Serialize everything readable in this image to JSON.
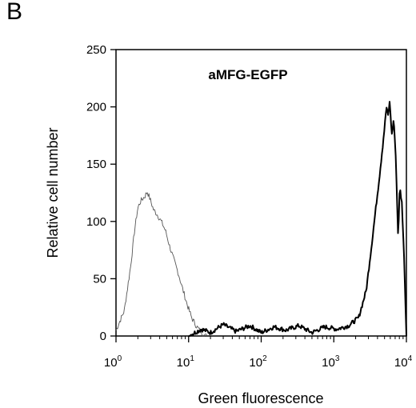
{
  "panel_label": "B",
  "chart_data": {
    "type": "line",
    "title": "aMFG-EGFP",
    "xlabel": "Green fluorescence",
    "ylabel": "Relative cell number",
    "xscale": "log",
    "xlim": [
      1,
      10000
    ],
    "ylim": [
      0,
      250
    ],
    "yticks": [
      0,
      50,
      100,
      150,
      200,
      250
    ],
    "xticks": [
      {
        "base": "10",
        "exp": "0",
        "value": 1
      },
      {
        "base": "10",
        "exp": "1",
        "value": 10
      },
      {
        "base": "10",
        "exp": "2",
        "value": 100
      },
      {
        "base": "10",
        "exp": "3",
        "value": 1000
      },
      {
        "base": "10",
        "exp": "4",
        "value": 10000
      }
    ],
    "grid": false,
    "series": [
      {
        "style": "thin",
        "color": "#555555",
        "x": [
          1.0,
          1.3,
          1.6,
          1.8,
          2.0,
          2.2,
          2.5,
          2.7,
          3.0,
          3.3,
          3.7,
          4.2,
          4.8,
          5.5,
          6.3,
          7.2,
          8.2,
          9.5,
          11,
          13,
          15,
          18
        ],
        "y": [
          5,
          22,
          62,
          92,
          112,
          118,
          122,
          126,
          118,
          110,
          106,
          100,
          92,
          78,
          66,
          55,
          42,
          28,
          16,
          8,
          3,
          0
        ]
      },
      {
        "style": "thick",
        "color": "#000000",
        "x": [
          10,
          15,
          20,
          30,
          45,
          70,
          100,
          150,
          220,
          330,
          500,
          750,
          1100,
          1600,
          2200,
          2800,
          3300,
          3800,
          4300,
          4700,
          5000,
          5300,
          5600,
          5900,
          6300,
          6700,
          7200,
          7700,
          8100,
          8700,
          9400,
          10000
        ],
        "y": [
          0,
          6,
          3,
          10,
          4,
          9,
          3,
          8,
          5,
          9,
          3,
          8,
          6,
          9,
          16,
          40,
          78,
          112,
          142,
          165,
          182,
          200,
          192,
          205,
          175,
          190,
          150,
          85,
          130,
          115,
          60,
          0
        ]
      }
    ]
  }
}
